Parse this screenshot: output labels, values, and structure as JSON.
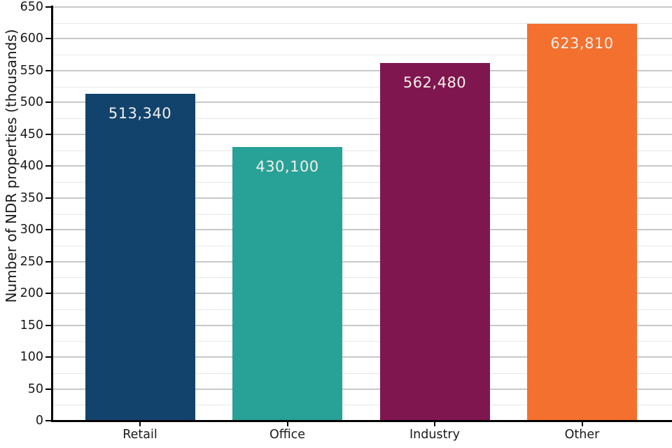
{
  "chart_data": {
    "type": "bar",
    "categories": [
      "Retail",
      "Office",
      "Industry",
      "Other"
    ],
    "values": [
      513340,
      430100,
      562480,
      623810
    ],
    "values_thousands": [
      513.34,
      430.1,
      562.48,
      623.81
    ],
    "bar_labels": [
      "513,340",
      "430,100",
      "562,480",
      "623,810"
    ],
    "ylabel": "Number of NDR properties (thousands)",
    "xlabel": "",
    "ylim": [
      0,
      650
    ],
    "ytick_step": 50,
    "yminor_step": 25,
    "ytick_labels": [
      "0",
      "50",
      "100",
      "150",
      "200",
      "250",
      "300",
      "350",
      "400",
      "450",
      "500",
      "550",
      "600",
      "650"
    ],
    "grid": "horizontal-major-and-minor",
    "legend": "none",
    "bar_colors": [
      "#12436D",
      "#28A197",
      "#801650",
      "#F4702E"
    ],
    "bar_label_color": "#F2F0EB",
    "axis_color": "#000000",
    "tick_label_color": "#1A1A1A",
    "major_grid_color": "#C8C8C8",
    "minor_grid_color": "#E7E7E7"
  }
}
